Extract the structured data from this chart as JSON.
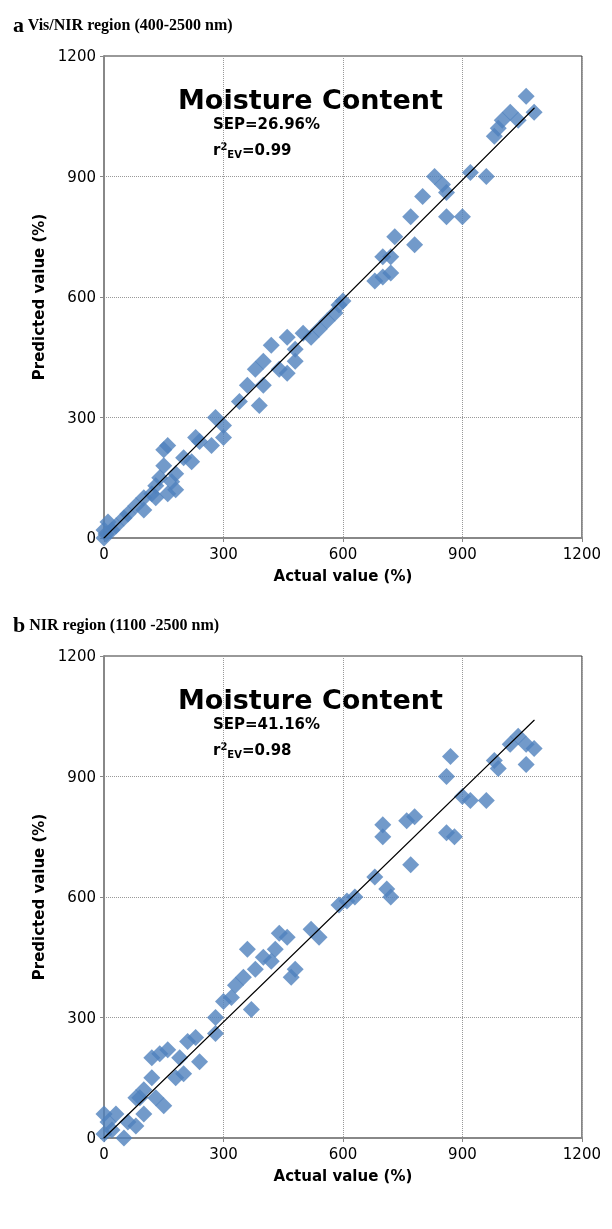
{
  "chart_data": [
    {
      "type": "scatter",
      "title": "a Vis/NIR region (400-2500 nm)",
      "xlabel": "Actual value (%)",
      "ylabel": "Predicted value (%)",
      "annotations": [
        "Moisture Content",
        "SEP=26.96%",
        "r$^{2}$$_{EV}$=0.99"
      ],
      "xlim": [
        0,
        1200
      ],
      "ylim": [
        0,
        1200
      ],
      "xticks": [
        0,
        300,
        600,
        900,
        1200
      ],
      "yticks": [
        0,
        300,
        600,
        900,
        1200
      ],
      "grid": true,
      "marker": "diamond",
      "series": [
        {
          "color": "#4f81bd",
          "x": [
            1060,
            1080,
            1040,
            1020,
            1000,
            980,
            990,
            920,
            960,
            900,
            860,
            850,
            830,
            860,
            800,
            780,
            770,
            730,
            720,
            700,
            700,
            680,
            720,
            600,
            590,
            580,
            560,
            540,
            520,
            500,
            480,
            460,
            480,
            460,
            440,
            420,
            400,
            400,
            390,
            380,
            360,
            340,
            300,
            300,
            280,
            270,
            230,
            220,
            200,
            180,
            160,
            150,
            150,
            140,
            160,
            130,
            120,
            100,
            100,
            80,
            60,
            50,
            30,
            20,
            10,
            0,
            0,
            5,
            180,
            130,
            170,
            240
          ],
          "values": [
            1100,
            1060,
            1040,
            1060,
            1040,
            1000,
            1020,
            910,
            900,
            800,
            800,
            880,
            900,
            860,
            850,
            730,
            800,
            750,
            660,
            700,
            650,
            640,
            700,
            590,
            580,
            560,
            540,
            520,
            500,
            510,
            470,
            500,
            440,
            410,
            420,
            480,
            440,
            380,
            330,
            420,
            380,
            340,
            280,
            250,
            300,
            230,
            250,
            190,
            200,
            160,
            230,
            220,
            180,
            150,
            110,
            130,
            110,
            100,
            70,
            80,
            60,
            50,
            30,
            20,
            40,
            0,
            20,
            10,
            120,
            100,
            140,
            240
          ]
        },
        {
          "type": "line",
          "color": "#000000",
          "marker": "none",
          "x": [
            0,
            1080
          ],
          "values": [
            0,
            1070
          ]
        }
      ]
    },
    {
      "type": "scatter",
      "title": "b NIR region (1100 -2500 nm)",
      "xlabel": "Actual value (%)",
      "ylabel": "Predicted value (%)",
      "annotations": [
        "Moisture Content",
        "SEP=41.16%",
        "r$^{2}$$_{EV}$=0.98"
      ],
      "xlim": [
        0,
        1200
      ],
      "ylim": [
        0,
        1200
      ],
      "xticks": [
        0,
        300,
        600,
        900,
        1200
      ],
      "yticks": [
        0,
        300,
        600,
        900,
        1200
      ],
      "grid": true,
      "marker": "diamond",
      "series": [
        {
          "color": "#4f81bd",
          "x": [
            1040,
            1060,
            1080,
            1060,
            1020,
            980,
            990,
            960,
            920,
            900,
            870,
            860,
            880,
            860,
            780,
            760,
            770,
            720,
            710,
            700,
            700,
            680,
            610,
            590,
            630,
            540,
            520,
            480,
            470,
            460,
            440,
            430,
            420,
            400,
            380,
            370,
            360,
            350,
            330,
            300,
            320,
            280,
            280,
            240,
            230,
            210,
            200,
            180,
            160,
            140,
            150,
            120,
            120,
            100,
            90,
            80,
            80,
            60,
            50,
            30,
            10,
            0,
            0,
            20,
            100,
            190,
            130
          ],
          "values": [
            1000,
            980,
            970,
            930,
            980,
            940,
            920,
            840,
            840,
            850,
            950,
            900,
            750,
            760,
            800,
            790,
            680,
            600,
            620,
            750,
            780,
            650,
            590,
            580,
            600,
            500,
            520,
            420,
            400,
            500,
            510,
            470,
            440,
            450,
            420,
            320,
            470,
            400,
            380,
            340,
            350,
            300,
            260,
            190,
            250,
            240,
            160,
            150,
            220,
            210,
            80,
            200,
            150,
            120,
            100,
            100,
            30,
            40,
            0,
            60,
            40,
            60,
            10,
            20,
            60,
            200,
            100
          ]
        },
        {
          "type": "line",
          "color": "#000000",
          "marker": "none",
          "x": [
            0,
            1080
          ],
          "values": [
            0,
            1040
          ]
        }
      ]
    }
  ]
}
